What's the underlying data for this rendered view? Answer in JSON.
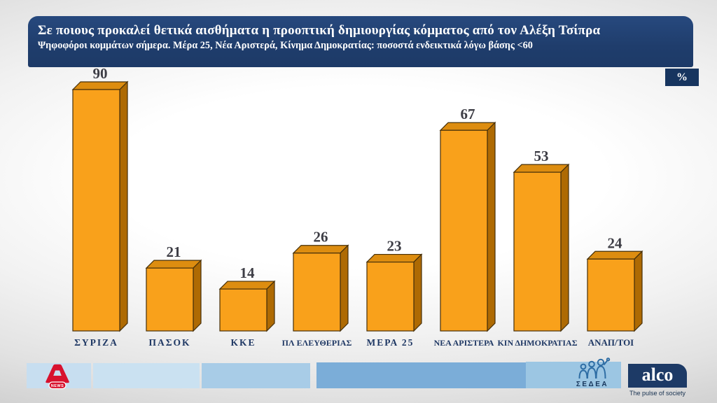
{
  "header": {
    "title": "Σε ποιους προκαλεί θετικά αισθήματα η προοπτική δημιουργίας κόμματος από τον Αλέξη Τσίπρα",
    "subtitle": "Ψηφοφόροι κομμάτων σήμερα. Μέρα 25, Νέα Αριστερά, Κίνημα Δημοκρατίας: ποσοστά ενδεικτικά λόγω βάσης <60"
  },
  "unit_badge": "%",
  "chart_data": {
    "type": "bar",
    "title": "Σε ποιους προκαλεί θετικά αισθήματα η προοπτική δημιουργίας κόμματος από τον Αλέξη Τσίπρα",
    "subtitle": "Ψηφοφόροι κομμάτων σήμερα. Μέρα 25, Νέα Αριστερά, Κίνημα Δημοκρατίας: ποσοστά ενδεικτικά λόγω βάσης <60",
    "categories": [
      "ΣΥΡΙΖΑ",
      "ΠΑΣΟΚ",
      "ΚΚΕ",
      "ΠΛ ΕΛΕΥΘΕΡΙΑΣ",
      "ΜΕΡΑ 25",
      "ΝΕΑ ΑΡΙΣΤΕΡΑ",
      "ΚΙΝ ΔΗΜΟΚΡΑΤΙΑΣ",
      "ΑΝΑΠ/ΤΟΙ"
    ],
    "values": [
      90,
      21,
      14,
      26,
      23,
      67,
      53,
      24
    ],
    "unit": "%",
    "xlabel": "",
    "ylabel": "",
    "ylim": [
      0,
      95
    ],
    "grid": false,
    "legend": null,
    "style": "3d-bars",
    "colors": {
      "bar_front": "#F9A11B",
      "bar_top": "#DD8D10",
      "bar_side": "#AE6A03",
      "bar_outline": "#46300a",
      "value_label": "#3d3d45",
      "category_label": "#1F3864"
    }
  },
  "footer": {
    "alpha_news_label": "NEWS",
    "sedea_label": "ΣΕΔΕΑ",
    "alco_label": "alco",
    "alco_tagline": "The pulse of society"
  }
}
